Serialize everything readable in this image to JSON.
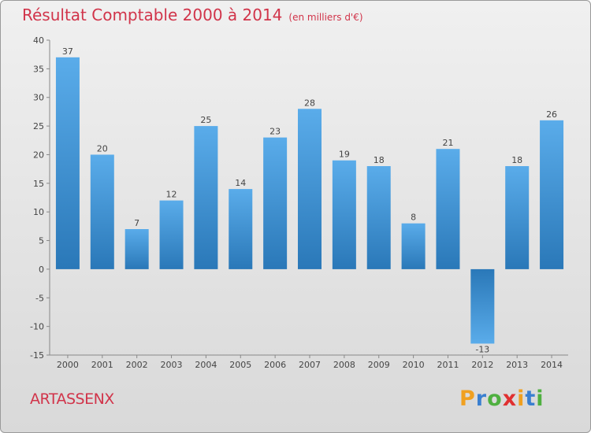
{
  "chart_data": {
    "type": "bar",
    "title": "Résultat Comptable 2000 à 2014",
    "subtitle": "(en milliers d'€)",
    "categories": [
      "2000",
      "2001",
      "2002",
      "2003",
      "2004",
      "2005",
      "2006",
      "2007",
      "2008",
      "2009",
      "2010",
      "2011",
      "2012",
      "2013",
      "2014"
    ],
    "values": [
      37,
      20,
      7,
      12,
      25,
      14,
      23,
      28,
      19,
      18,
      8,
      21,
      -13,
      18,
      26
    ],
    "value_labels": [
      "37",
      "20",
      "7",
      "12",
      "25",
      "14",
      "23",
      "28",
      "19",
      "18",
      "8",
      "21",
      "-13",
      "18",
      "26"
    ],
    "yticks": [
      "40",
      "35",
      "30",
      "25",
      "20",
      "15",
      "10",
      "5",
      "0",
      "-5",
      "-10",
      "-15"
    ],
    "ylim": [
      -15,
      40
    ],
    "xlabel": "",
    "ylabel": "",
    "bar_color": "#3d8fd0",
    "grid": false
  },
  "commune": "ARTASSENX",
  "logo": {
    "letters": [
      "P",
      "r",
      "o",
      "x",
      "i",
      "t",
      "i"
    ],
    "colors": [
      "#f0a020",
      "#3a7fd0",
      "#4fb040",
      "#e03030",
      "#f0a020",
      "#3a7fd0",
      "#4fb040"
    ]
  }
}
